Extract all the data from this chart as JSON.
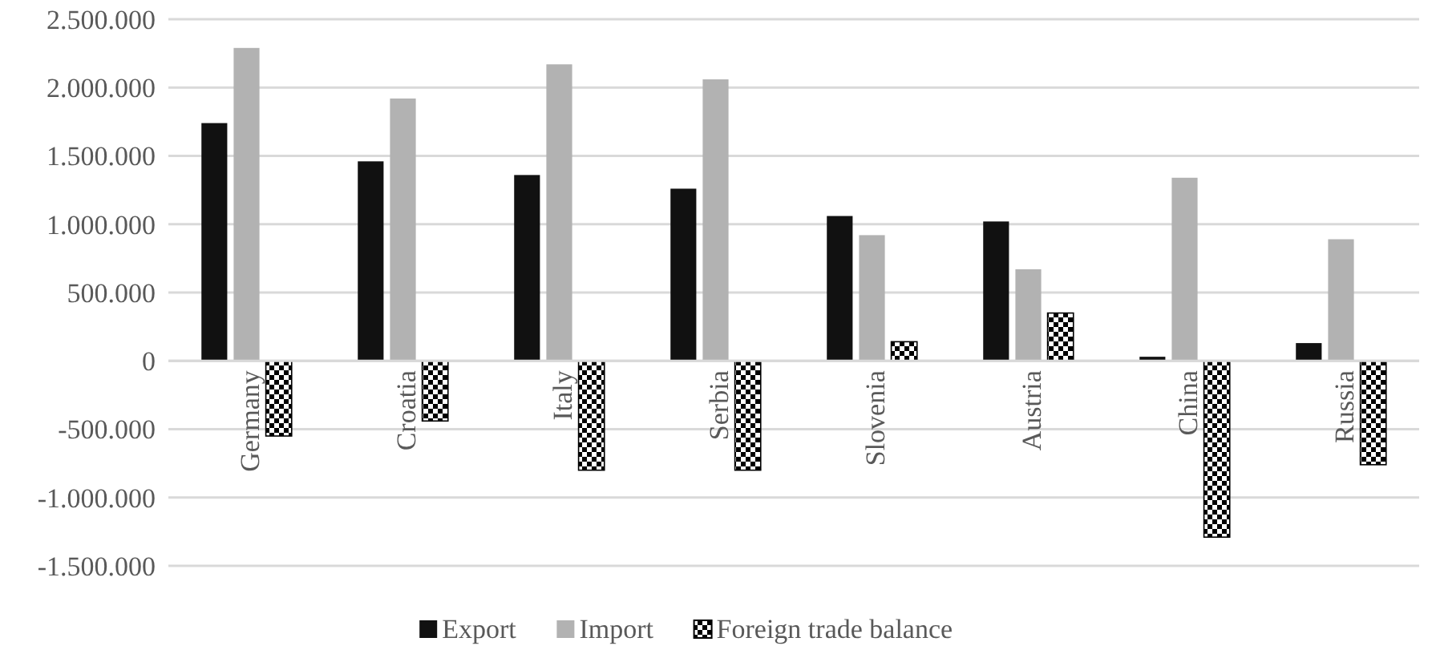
{
  "chart_data": {
    "type": "bar",
    "categories": [
      "Germany",
      "Croatia",
      "Italy",
      "Serbia",
      "Slovenia",
      "Austria",
      "China",
      "Russia"
    ],
    "series": [
      {
        "name": "Export",
        "color": "#111111",
        "values": [
          1740000,
          1460000,
          1360000,
          1260000,
          1060000,
          1020000,
          30000,
          130000
        ]
      },
      {
        "name": "Import",
        "color": "#b2b2b2",
        "values": [
          2290000,
          1920000,
          2170000,
          2060000,
          920000,
          670000,
          1340000,
          890000
        ]
      },
      {
        "name": "Foreign trade balance",
        "color": "#000000",
        "values": [
          -550000,
          -440000,
          -800000,
          -800000,
          140000,
          350000,
          -1290000,
          -760000
        ]
      }
    ],
    "ylim": [
      -1500000,
      2500000
    ],
    "yticks": [
      {
        "value": -1500000,
        "label": "-1.500.000"
      },
      {
        "value": -1000000,
        "label": "-1.000.000"
      },
      {
        "value": -500000,
        "label": "-500.000"
      },
      0,
      {
        "value": 500000,
        "label": "500.000"
      },
      {
        "value": 1000000,
        "label": "1.000.000"
      },
      {
        "value": 1500000,
        "label": "1.500.000"
      },
      {
        "value": 2000000,
        "label": "2.000.000"
      },
      {
        "value": 2500000,
        "label": "2.500.000"
      }
    ],
    "grid": "y",
    "legend": "bottom"
  }
}
